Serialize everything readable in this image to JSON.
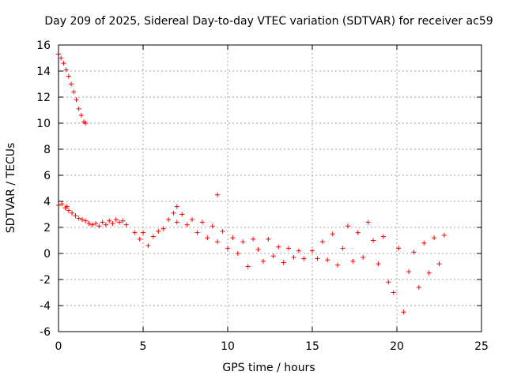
{
  "chart_data": {
    "type": "scatter",
    "title": "Day 209 of 2025, Sidereal Day-to-day VTEC variation (SDTVAR) for receiver ac59",
    "xlabel": "GPS time / hours",
    "ylabel": "SDTVAR / TECUs",
    "xlim": [
      0,
      25
    ],
    "ylim": [
      -6,
      16
    ],
    "xticks": [
      0,
      5,
      10,
      15,
      20,
      25
    ],
    "yticks": [
      -6,
      -4,
      -2,
      0,
      2,
      4,
      6,
      8,
      10,
      12,
      14,
      16
    ],
    "grid": true,
    "marker": "+",
    "color": "#ff0000",
    "series": [
      {
        "name": "SDTVAR",
        "x": [
          0.0,
          0.15,
          0.3,
          0.45,
          0.6,
          0.75,
          0.9,
          1.05,
          1.2,
          1.35,
          1.5,
          1.6,
          0.0,
          0.2,
          0.4,
          0.5,
          0.6,
          0.8,
          1.0,
          1.2,
          1.4,
          1.6,
          1.8,
          2.0,
          2.2,
          2.4,
          2.6,
          2.8,
          3.0,
          3.2,
          3.4,
          3.6,
          3.8,
          4.0,
          4.5,
          4.8,
          5.0,
          5.3,
          5.6,
          5.9,
          6.2,
          6.5,
          6.8,
          7.0,
          7.3,
          7.6,
          7.9,
          8.2,
          8.5,
          8.8,
          9.1,
          9.4,
          9.7,
          10.0,
          10.3,
          10.6,
          10.9,
          11.2,
          11.5,
          11.8,
          12.1,
          12.4,
          12.7,
          13.0,
          13.3,
          13.6,
          13.9,
          14.2,
          14.5,
          15.0,
          15.3,
          15.6,
          15.9,
          16.2,
          16.5,
          16.8,
          17.1,
          17.4,
          17.7,
          18.0,
          18.3,
          18.6,
          18.9,
          19.2,
          19.5,
          19.8,
          20.1,
          20.4,
          20.7,
          21.0,
          21.3,
          21.6,
          21.9,
          22.2,
          22.5,
          22.8,
          7.0,
          9.4
        ],
        "y": [
          15.3,
          15.0,
          14.6,
          14.1,
          13.6,
          13.0,
          12.4,
          11.8,
          11.1,
          10.6,
          10.1,
          10.0,
          3.7,
          3.8,
          3.5,
          3.6,
          3.3,
          3.1,
          2.9,
          2.7,
          2.6,
          2.5,
          2.3,
          2.2,
          2.3,
          2.1,
          2.4,
          2.2,
          2.5,
          2.3,
          2.6,
          2.4,
          2.5,
          2.2,
          1.6,
          1.1,
          1.6,
          0.6,
          1.3,
          1.7,
          1.9,
          2.6,
          3.1,
          2.4,
          3.0,
          2.2,
          2.6,
          1.6,
          2.4,
          1.2,
          2.1,
          0.9,
          1.7,
          0.4,
          1.2,
          0.0,
          0.9,
          -1.0,
          1.1,
          0.3,
          -0.6,
          1.1,
          -0.2,
          0.5,
          -0.7,
          0.4,
          -0.3,
          0.2,
          -0.4,
          0.2,
          -0.4,
          0.9,
          -0.5,
          1.5,
          -0.9,
          0.4,
          2.1,
          -0.6,
          1.6,
          -0.3,
          2.4,
          1.0,
          -0.8,
          1.3,
          -2.2,
          -3.0,
          0.4,
          -4.5,
          -1.4,
          0.1,
          -2.6,
          0.8,
          -1.5,
          1.2,
          -0.8,
          1.4,
          3.6,
          4.5
        ]
      }
    ]
  }
}
